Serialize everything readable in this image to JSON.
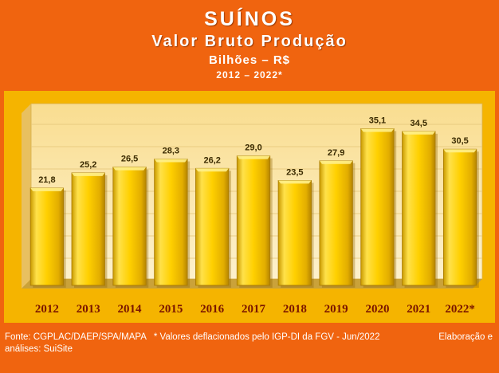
{
  "header": {
    "title": "SUÍNOS",
    "subtitle": "Valor Bruto Produção",
    "unit": "Bilhões – R$",
    "period": "2012 – 2022*"
  },
  "footer": {
    "source": "Fonte: CGPLAC/DAEP/SPA/MAPA",
    "note": "* Valores deflacionados pelo IGP-DI da FGV - Jun/2022",
    "credit_line1": "Elaboração e",
    "credit_line2": "análises: SuiSite"
  },
  "colors": {
    "frame": "#f0640f",
    "panel": "#f5b400",
    "plot_area": "#fbe6a8",
    "bar": "#ffd000",
    "label": "#7a1500"
  },
  "chart_data": {
    "type": "bar",
    "categories": [
      "2012",
      "2013",
      "2014",
      "2015",
      "2016",
      "2017",
      "2018",
      "2019",
      "2020",
      "2021",
      "2022*"
    ],
    "values": [
      21.8,
      25.2,
      26.5,
      28.3,
      26.2,
      29.0,
      23.5,
      27.9,
      35.1,
      34.5,
      30.5
    ],
    "data_labels": [
      "21,8",
      "25,2",
      "26,5",
      "28,3",
      "26,2",
      "29,0",
      "23,5",
      "27,9",
      "35,1",
      "34,5",
      "30,5"
    ],
    "title": "SUÍNOS",
    "subtitle": "Valor Bruto Produção",
    "ylabel": "Bilhões – R$",
    "ylim": [
      0,
      40
    ],
    "grid": true,
    "legend": "none"
  }
}
